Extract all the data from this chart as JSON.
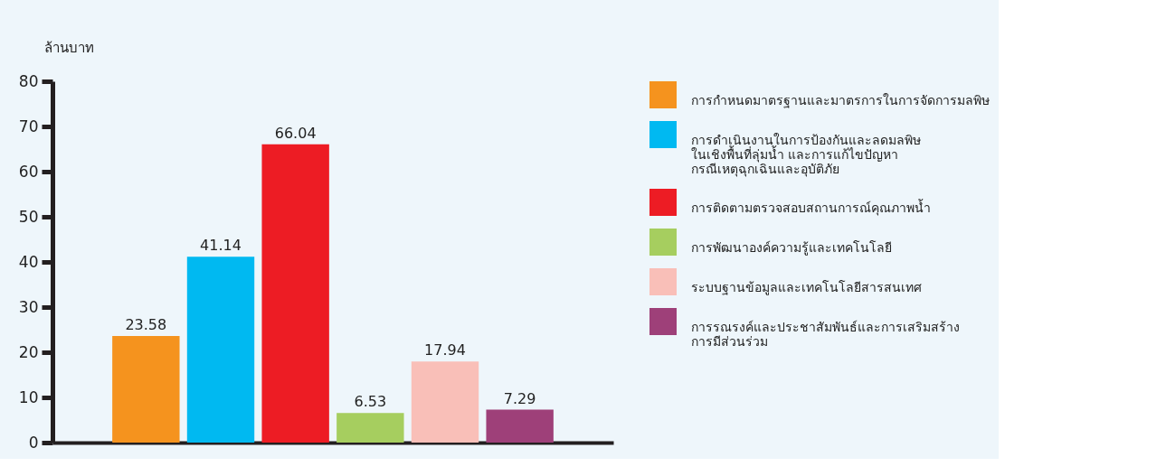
{
  "chart_data": {
    "type": "bar",
    "ylabel": "ล้านบาท",
    "categories": [
      null,
      null,
      null,
      null,
      null,
      null
    ],
    "series": [
      {
        "name": "การกำหนดมาตรฐานและมาตรการในการจัดการมลพิษ",
        "color": "#f5931e",
        "values": [
          23.58,
          null,
          null,
          null,
          null,
          null
        ]
      },
      {
        "name": "การดำเนินงานในการป้องกันและลดมลพิษ\nในเชิงพื้นที่ลุ่มน้ำ และการแก้ไขปัญหา\nกรณีเหตุฉุกเฉินและอุบัติภัย",
        "color": "#00b9f1",
        "values": [
          null,
          41.14,
          null,
          null,
          null,
          null
        ]
      },
      {
        "name": "การติดตามตรวจสอบสถานการณ์คุณภาพน้ำ",
        "color": "#ed1c24",
        "values": [
          null,
          null,
          66.04,
          null,
          null,
          null
        ]
      },
      {
        "name": "การพัฒนาองค์ความรู้และเทคโนโลยี",
        "color": "#a6ce5f",
        "values": [
          null,
          null,
          null,
          6.53,
          null,
          null
        ]
      },
      {
        "name": "ระบบฐานข้อมูลและเทคโนโลยีสารสนเทศ",
        "color": "#f9bfb8",
        "values": [
          null,
          null,
          null,
          null,
          17.94,
          null
        ]
      },
      {
        "name": "การรณรงค์และประชาสัมพันธ์และการเสริมสร้าง\nการมีส่วนร่วม",
        "color": "#9e4079",
        "values": [
          null,
          null,
          null,
          null,
          null,
          7.29
        ]
      }
    ],
    "ylim": [
      0,
      80
    ],
    "yticks": [
      0,
      10,
      20,
      30,
      40,
      50,
      60,
      70,
      80
    ],
    "data_labels": true,
    "legend": "right",
    "tick_labels": "y",
    "grid": false
  }
}
